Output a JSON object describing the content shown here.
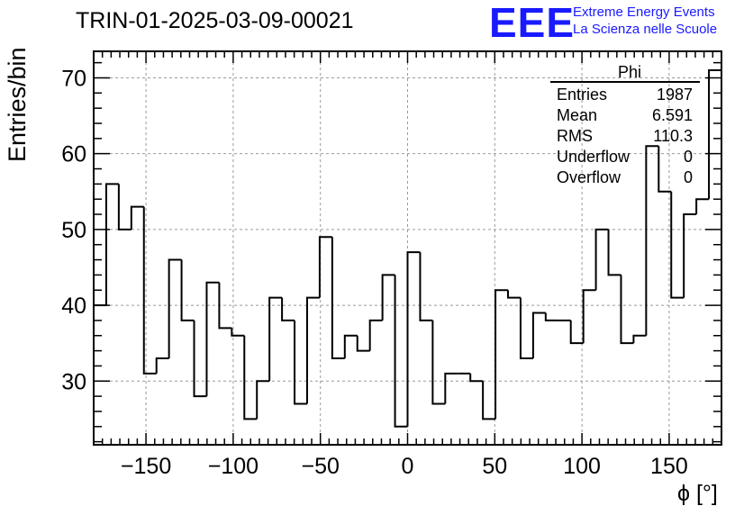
{
  "title": "TRIN-01-2025-03-09-00021",
  "logo": {
    "mark": "EEE",
    "line1": "Extreme Energy Events",
    "line2": "La Scienza nelle Scuole",
    "color": "#1a1aff"
  },
  "stats": {
    "title": "Phi",
    "rows": [
      {
        "label": "Entries",
        "value": "1987"
      },
      {
        "label": "Mean",
        "value": "6.591"
      },
      {
        "label": "RMS",
        "value": "110.3"
      },
      {
        "label": "Underflow",
        "value": "0"
      },
      {
        "label": "Overflow",
        "value": "0"
      }
    ]
  },
  "chart_data": {
    "type": "bar",
    "style": "step-histogram",
    "title": "TRIN-01-2025-03-09-00021",
    "xlabel": "ϕ [°]",
    "ylabel": "Entries/bin",
    "xlim": [
      -180,
      180
    ],
    "ylim": [
      21.6,
      73.5
    ],
    "bin_width": 7.2,
    "x_ticks": [
      -150,
      -100,
      -50,
      0,
      50,
      100,
      150
    ],
    "x_tick_labels": [
      "−150",
      "−100",
      "−50",
      "0",
      "50",
      "100",
      "150"
    ],
    "y_ticks": [
      30,
      40,
      50,
      60,
      70
    ],
    "y_tick_labels": [
      "30",
      "40",
      "50",
      "60",
      "70"
    ],
    "grid": true,
    "values": [
      40,
      56,
      50,
      53,
      31,
      33,
      46,
      38,
      28,
      43,
      37,
      36,
      25,
      30,
      41,
      38,
      27,
      41,
      49,
      33,
      36,
      34,
      38,
      44,
      24,
      47,
      38,
      27,
      31,
      31,
      30,
      25,
      42,
      41,
      33,
      39,
      38,
      38,
      35,
      42,
      50,
      44,
      35,
      36,
      61,
      55,
      41,
      52,
      54,
      71
    ]
  }
}
